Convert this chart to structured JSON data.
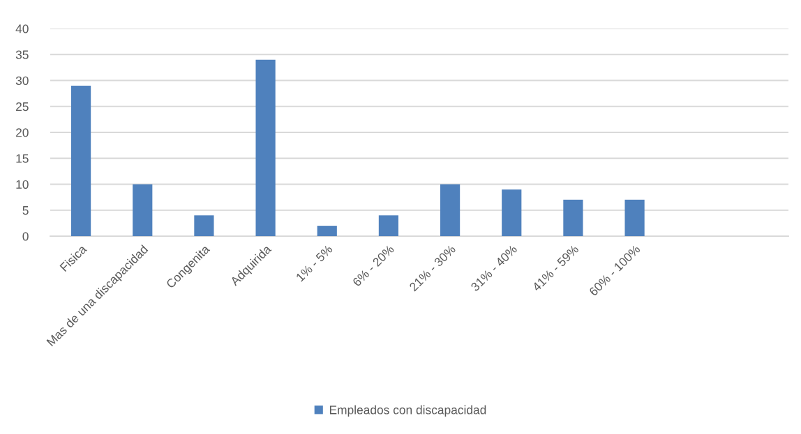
{
  "chart_data": {
    "type": "bar",
    "categories": [
      "Fisica",
      "Mas de una discapacidad",
      "Congenita",
      "Adquirida",
      "1% - 5%",
      "6% - 20%",
      "21% - 30%",
      "31% - 40%",
      "41% - 59%",
      "60% - 100%",
      null,
      null
    ],
    "series": [
      {
        "name": "Empleados con discapacidad",
        "color": "#4f81bd",
        "values": [
          29,
          10,
          4,
          34,
          2,
          4,
          10,
          9,
          7,
          7,
          null,
          null
        ]
      }
    ],
    "ylim": [
      0,
      40
    ],
    "yticks": [
      0,
      5,
      10,
      15,
      20,
      25,
      30,
      35,
      40
    ],
    "grid": "y",
    "legend": "bottom"
  }
}
